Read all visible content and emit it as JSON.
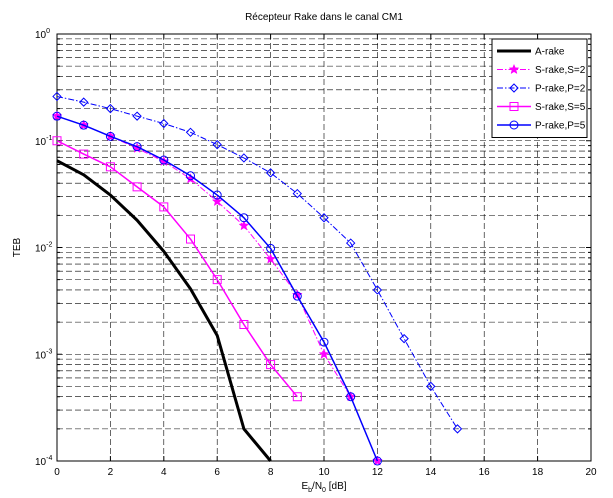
{
  "chart_data": {
    "type": "line",
    "title": "Récepteur Rake dans le canal CM1",
    "xlabel": {
      "base": "E",
      "sub1": "b",
      "mid": "/N",
      "sub2": "0",
      "tail": " [dB]"
    },
    "ylabel": "TEB",
    "xlim": [
      0,
      20
    ],
    "ylim": [
      0.0001,
      1
    ],
    "yscale": "log",
    "grid": true,
    "legend_position": "top-right",
    "x_ticks": [
      "0",
      "2",
      "4",
      "6",
      "8",
      "10",
      "12",
      "14",
      "16",
      "18",
      "20"
    ],
    "y_ticks": [
      {
        "base": "10",
        "exp": "0",
        "value": 1
      },
      {
        "base": "10",
        "exp": "-1",
        "value": 0.1
      },
      {
        "base": "10",
        "exp": "-2",
        "value": 0.01
      },
      {
        "base": "10",
        "exp": "-3",
        "value": 0.001
      },
      {
        "base": "10",
        "exp": "-4",
        "value": 0.0001
      }
    ],
    "series": [
      {
        "name": "A-rake",
        "color": "#000000",
        "line_style": "solid",
        "line_width": 3,
        "marker": "none",
        "x": [
          0,
          1,
          2,
          3,
          4,
          5,
          6,
          7,
          8
        ],
        "y": [
          0.065,
          0.048,
          0.031,
          0.018,
          0.0092,
          0.0041,
          0.0015,
          0.0002,
          0.0001
        ]
      },
      {
        "name": "S-rake,S=2",
        "color": "#ff00ff",
        "line_style": "dashdot",
        "line_width": 1,
        "marker": "star",
        "x": [
          0,
          1,
          2,
          3,
          4,
          5,
          6,
          7,
          8,
          9,
          10,
          11,
          12
        ],
        "y": [
          0.17,
          0.14,
          0.11,
          0.085,
          0.064,
          0.044,
          0.027,
          0.016,
          0.0078,
          0.0036,
          0.001,
          0.0004,
          0.0001
        ]
      },
      {
        "name": "P-rake,P=2",
        "color": "#0000ff",
        "line_style": "dashdot",
        "line_width": 1,
        "marker": "diamond",
        "x": [
          0,
          1,
          2,
          3,
          4,
          5,
          6,
          7,
          8,
          9,
          10,
          11,
          12,
          13,
          14,
          15
        ],
        "y": [
          0.26,
          0.23,
          0.2,
          0.17,
          0.145,
          0.12,
          0.092,
          0.069,
          0.05,
          0.032,
          0.019,
          0.011,
          0.004,
          0.0014,
          0.0005,
          0.0002
        ]
      },
      {
        "name": "S-rake,S=5",
        "color": "#ff00ff",
        "line_style": "solid",
        "line_width": 1.5,
        "marker": "square",
        "x": [
          0,
          1,
          2,
          3,
          4,
          5,
          6,
          7,
          8,
          9
        ],
        "y": [
          0.1,
          0.075,
          0.057,
          0.037,
          0.024,
          0.012,
          0.005,
          0.0019,
          0.0008,
          0.0004
        ]
      },
      {
        "name": "P-rake,P=5",
        "color": "#0000ff",
        "line_style": "solid",
        "line_width": 1.5,
        "marker": "circle",
        "x": [
          0,
          1,
          2,
          3,
          4,
          5,
          6,
          7,
          8,
          9,
          10,
          11,
          12
        ],
        "y": [
          0.17,
          0.14,
          0.11,
          0.088,
          0.066,
          0.047,
          0.031,
          0.019,
          0.0098,
          0.0035,
          0.0013,
          0.0004,
          0.0001
        ]
      }
    ]
  }
}
